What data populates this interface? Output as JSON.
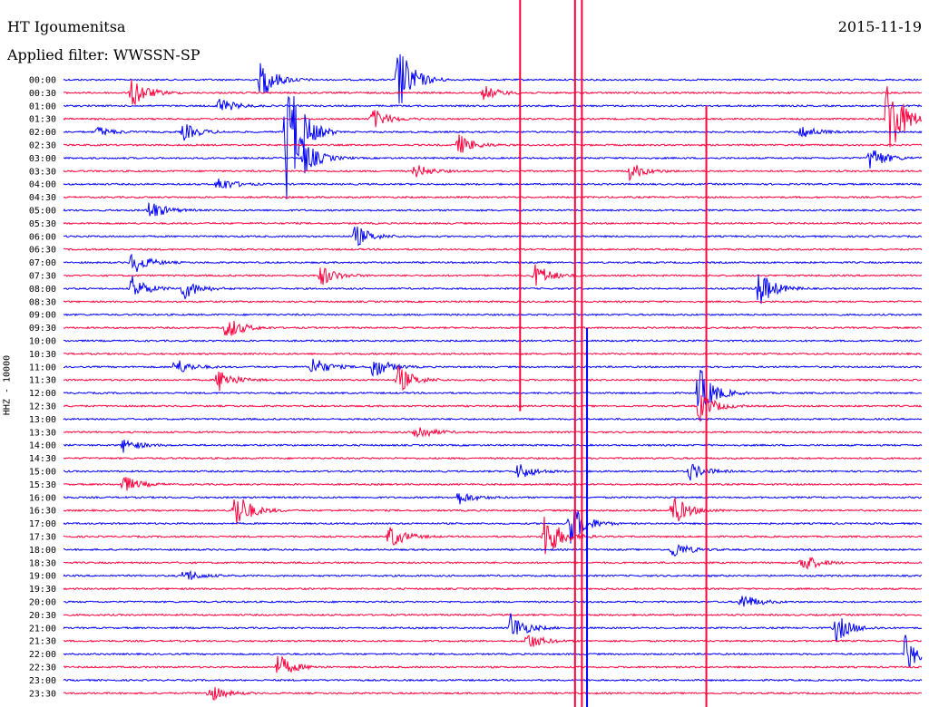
{
  "header": {
    "station": "HT Igoumenitsa",
    "filter": "Applied filter: WWSSN-SP",
    "date": "2015-11-19"
  },
  "chart_data": {
    "type": "helicorder",
    "ylabel": "HHZ - 10000",
    "row_labels": [
      "00:00",
      "00:30",
      "01:00",
      "01:30",
      "02:00",
      "02:30",
      "03:00",
      "03:30",
      "04:00",
      "04:30",
      "05:00",
      "05:30",
      "06:00",
      "06:30",
      "07:00",
      "07:30",
      "08:00",
      "08:30",
      "09:00",
      "09:30",
      "10:00",
      "10:30",
      "11:00",
      "11:30",
      "12:00",
      "12:30",
      "13:00",
      "13:30",
      "14:00",
      "14:30",
      "15:00",
      "15:30",
      "16:00",
      "16:30",
      "17:00",
      "17:30",
      "18:00",
      "18:30",
      "19:00",
      "19:30",
      "20:00",
      "20:30",
      "21:00",
      "21:30",
      "22:00",
      "22:30",
      "23:00",
      "23:30"
    ],
    "colors": {
      "even_rows": "#0000ff",
      "odd_rows": "#ff003c"
    },
    "row_minutes": 30,
    "events": [
      {
        "row": 0,
        "t": 0.39,
        "amp": 40
      },
      {
        "row": 0,
        "t": 0.23,
        "amp": 22
      },
      {
        "row": 1,
        "t": 0.08,
        "amp": 18
      },
      {
        "row": 1,
        "t": 0.49,
        "amp": 8
      },
      {
        "row": 2,
        "t": 0.18,
        "amp": 10
      },
      {
        "row": 3,
        "t": 0.36,
        "amp": 12
      },
      {
        "row": 3,
        "t": 0.96,
        "amp": 55
      },
      {
        "row": 4,
        "t": 0.26,
        "amp": 80
      },
      {
        "row": 4,
        "t": 0.04,
        "amp": 6
      },
      {
        "row": 4,
        "t": 0.14,
        "amp": 10
      },
      {
        "row": 4,
        "t": 0.86,
        "amp": 8
      },
      {
        "row": 5,
        "t": 0.46,
        "amp": 12
      },
      {
        "row": 6,
        "t": 0.94,
        "amp": 14
      },
      {
        "row": 6,
        "t": 0.28,
        "amp": 20
      },
      {
        "row": 7,
        "t": 0.41,
        "amp": 8
      },
      {
        "row": 7,
        "t": 0.66,
        "amp": 10
      },
      {
        "row": 8,
        "t": 0.18,
        "amp": 9
      },
      {
        "row": 10,
        "t": 0.1,
        "amp": 12
      },
      {
        "row": 12,
        "t": 0.34,
        "amp": 13
      },
      {
        "row": 14,
        "t": 0.08,
        "amp": 14
      },
      {
        "row": 15,
        "t": 0.3,
        "amp": 12
      },
      {
        "row": 15,
        "t": 0.55,
        "amp": 14
      },
      {
        "row": 16,
        "t": 0.08,
        "amp": 14
      },
      {
        "row": 16,
        "t": 0.14,
        "amp": 12
      },
      {
        "row": 16,
        "t": 0.81,
        "amp": 22
      },
      {
        "row": 19,
        "t": 0.19,
        "amp": 14
      },
      {
        "row": 22,
        "t": 0.13,
        "amp": 10
      },
      {
        "row": 22,
        "t": 0.29,
        "amp": 12
      },
      {
        "row": 22,
        "t": 0.36,
        "amp": 14
      },
      {
        "row": 23,
        "t": 0.18,
        "amp": 14
      },
      {
        "row": 23,
        "t": 0.39,
        "amp": 16
      },
      {
        "row": 24,
        "t": 0.74,
        "amp": 30
      },
      {
        "row": 25,
        "t": 0.74,
        "amp": 18
      },
      {
        "row": 27,
        "t": 0.41,
        "amp": 10
      },
      {
        "row": 28,
        "t": 0.07,
        "amp": 8
      },
      {
        "row": 30,
        "t": 0.53,
        "amp": 10
      },
      {
        "row": 30,
        "t": 0.73,
        "amp": 10
      },
      {
        "row": 31,
        "t": 0.07,
        "amp": 10
      },
      {
        "row": 32,
        "t": 0.46,
        "amp": 8
      },
      {
        "row": 33,
        "t": 0.2,
        "amp": 24
      },
      {
        "row": 33,
        "t": 0.71,
        "amp": 18
      },
      {
        "row": 34,
        "t": 0.59,
        "amp": 26
      },
      {
        "row": 35,
        "t": 0.38,
        "amp": 14
      },
      {
        "row": 35,
        "t": 0.56,
        "amp": 30
      },
      {
        "row": 36,
        "t": 0.71,
        "amp": 10
      },
      {
        "row": 37,
        "t": 0.86,
        "amp": 12
      },
      {
        "row": 38,
        "t": 0.14,
        "amp": 8
      },
      {
        "row": 40,
        "t": 0.79,
        "amp": 10
      },
      {
        "row": 42,
        "t": 0.52,
        "amp": 18
      },
      {
        "row": 42,
        "t": 0.9,
        "amp": 16
      },
      {
        "row": 43,
        "t": 0.54,
        "amp": 10
      },
      {
        "row": 44,
        "t": 0.98,
        "amp": 22
      },
      {
        "row": 45,
        "t": 0.25,
        "amp": 14
      },
      {
        "row": 47,
        "t": 0.17,
        "amp": 10
      }
    ],
    "strong_verticals": [
      {
        "x_frac": 0.596,
        "color": "#ff003c",
        "top_row": 0,
        "bottom_row": 47
      },
      {
        "x_frac": 0.604,
        "color": "#ff003c",
        "top_row": 0,
        "bottom_row": 47
      },
      {
        "x_frac": 0.61,
        "color": "#0000ff",
        "top_row": 20,
        "bottom_row": 47
      },
      {
        "x_frac": 0.749,
        "color": "#ff003c",
        "top_row": 3,
        "bottom_row": 47
      },
      {
        "x_frac": 0.532,
        "color": "#ff003c",
        "top_row": 0,
        "bottom_row": 24
      }
    ]
  }
}
